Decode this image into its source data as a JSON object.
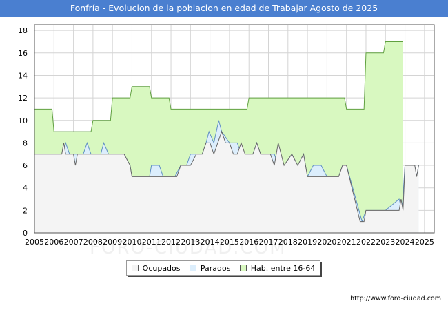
{
  "chart_data": {
    "type": "area",
    "title": "Fonfría - Evolucion de la poblacion en edad de Trabajar Agosto de 2025",
    "xlabel": "",
    "ylabel": "",
    "x_ticks": [
      "2005",
      "2006",
      "2007",
      "2008",
      "2009",
      "2010",
      "2011",
      "2012",
      "2013",
      "2014",
      "2015",
      "2016",
      "2017",
      "2018",
      "2019",
      "2020",
      "2021",
      "2022",
      "2023",
      "2024",
      "2025"
    ],
    "y_ticks": [
      "0",
      "2",
      "4",
      "6",
      "8",
      "10",
      "12",
      "14",
      "16",
      "18"
    ],
    "xlim": [
      2005,
      2025.5
    ],
    "ylim": [
      0,
      18.5
    ],
    "grid": true,
    "legend_position": "bottom-center",
    "series": [
      {
        "name": "Hab. entre 16-64",
        "color": "#d8f8c0",
        "line_color": "#60a040",
        "points": [
          [
            2005,
            11
          ],
          [
            2005.9,
            11
          ],
          [
            2006,
            9
          ],
          [
            2007.9,
            9
          ],
          [
            2008,
            10
          ],
          [
            2008.9,
            10
          ],
          [
            2009,
            12
          ],
          [
            2009.9,
            12
          ],
          [
            2010,
            13
          ],
          [
            2010.9,
            13
          ],
          [
            2011,
            12
          ],
          [
            2011.9,
            12
          ],
          [
            2012,
            11
          ],
          [
            2015.9,
            11
          ],
          [
            2016,
            12
          ],
          [
            2020.9,
            12
          ],
          [
            2021,
            11
          ],
          [
            2021.9,
            11
          ],
          [
            2022,
            16
          ],
          [
            2022.9,
            16
          ],
          [
            2023,
            17
          ],
          [
            2023.9,
            17
          ]
        ]
      },
      {
        "name": "Parados",
        "color": "#dceefc",
        "line_color": "#6090c0",
        "points": [
          [
            2005,
            7
          ],
          [
            2006,
            7
          ],
          [
            2006.4,
            7
          ],
          [
            2006.6,
            8
          ],
          [
            2006.8,
            7
          ],
          [
            2007.5,
            7
          ],
          [
            2007.7,
            8
          ],
          [
            2007.9,
            7
          ],
          [
            2008.4,
            7
          ],
          [
            2008.55,
            8
          ],
          [
            2008.8,
            7
          ],
          [
            2009.6,
            7
          ],
          [
            2009.9,
            6
          ],
          [
            2010,
            5
          ],
          [
            2010.9,
            5
          ],
          [
            2011,
            6
          ],
          [
            2011.4,
            6
          ],
          [
            2011.6,
            5
          ],
          [
            2012.2,
            5
          ],
          [
            2012.5,
            6
          ],
          [
            2012.8,
            6
          ],
          [
            2013,
            7
          ],
          [
            2013.3,
            7
          ],
          [
            2013.6,
            7
          ],
          [
            2013.8,
            8
          ],
          [
            2013.95,
            9
          ],
          [
            2014.2,
            8
          ],
          [
            2014.45,
            10
          ],
          [
            2014.6,
            9
          ],
          [
            2015.0,
            8
          ],
          [
            2015.2,
            8
          ],
          [
            2015.4,
            8
          ],
          [
            2015.6,
            7
          ],
          [
            2015.8,
            7
          ],
          [
            2016.2,
            7
          ],
          [
            2016.4,
            8
          ],
          [
            2016.6,
            7
          ],
          [
            2016.9,
            7
          ],
          [
            2017.1,
            7
          ],
          [
            2017.3,
            7
          ],
          [
            2017.5,
            6
          ],
          [
            2017.8,
            6
          ],
          [
            2018.2,
            7
          ],
          [
            2018.5,
            6
          ],
          [
            2018.8,
            7
          ],
          [
            2019.0,
            5
          ],
          [
            2019.3,
            6
          ],
          [
            2019.7,
            6
          ],
          [
            2020.0,
            5
          ],
          [
            2020.6,
            5
          ],
          [
            2020.8,
            6
          ],
          [
            2021,
            6
          ],
          [
            2021.8,
            1
          ],
          [
            2022,
            2
          ],
          [
            2023,
            2
          ],
          [
            2023.7,
            3
          ],
          [
            2023.85,
            2
          ],
          [
            2024,
            6
          ],
          [
            2024.5,
            6
          ],
          [
            2024.6,
            5
          ],
          [
            2024.7,
            6
          ]
        ]
      },
      {
        "name": "Ocupados",
        "color": "#f4f4f4",
        "line_color": "#666666",
        "points": [
          [
            2005,
            7
          ],
          [
            2006,
            7
          ],
          [
            2006.4,
            7
          ],
          [
            2006.5,
            8
          ],
          [
            2006.6,
            7
          ],
          [
            2007,
            7
          ],
          [
            2007.1,
            6
          ],
          [
            2007.2,
            7
          ],
          [
            2008,
            7
          ],
          [
            2008.5,
            7
          ],
          [
            2009,
            7
          ],
          [
            2009.6,
            7
          ],
          [
            2009.9,
            6
          ],
          [
            2010,
            5
          ],
          [
            2010.9,
            5
          ],
          [
            2011,
            5
          ],
          [
            2012,
            5
          ],
          [
            2012.3,
            5
          ],
          [
            2012.5,
            6
          ],
          [
            2013,
            6
          ],
          [
            2013.3,
            7
          ],
          [
            2013.6,
            7
          ],
          [
            2013.8,
            8
          ],
          [
            2014.0,
            8
          ],
          [
            2014.2,
            7
          ],
          [
            2014.4,
            8
          ],
          [
            2014.6,
            9
          ],
          [
            2014.8,
            8
          ],
          [
            2015.0,
            8
          ],
          [
            2015.2,
            7
          ],
          [
            2015.4,
            7
          ],
          [
            2015.6,
            8
          ],
          [
            2015.8,
            7
          ],
          [
            2016.2,
            7
          ],
          [
            2016.4,
            8
          ],
          [
            2016.6,
            7
          ],
          [
            2016.9,
            7
          ],
          [
            2017.1,
            7
          ],
          [
            2017.3,
            6
          ],
          [
            2017.5,
            8
          ],
          [
            2017.8,
            6
          ],
          [
            2018.2,
            7
          ],
          [
            2018.5,
            6
          ],
          [
            2018.8,
            7
          ],
          [
            2019.0,
            5
          ],
          [
            2019.3,
            5
          ],
          [
            2019.7,
            5
          ],
          [
            2020.0,
            5
          ],
          [
            2020.6,
            5
          ],
          [
            2020.8,
            6
          ],
          [
            2021,
            6
          ],
          [
            2021.7,
            1
          ],
          [
            2021.9,
            1
          ],
          [
            2022,
            2
          ],
          [
            2023,
            2
          ],
          [
            2023.7,
            2
          ],
          [
            2023.8,
            3
          ],
          [
            2023.9,
            2
          ],
          [
            2024,
            6
          ],
          [
            2024.5,
            6
          ],
          [
            2024.6,
            5
          ],
          [
            2024.7,
            6
          ]
        ]
      }
    ],
    "footer": "http://www.foro-ciudad.com"
  },
  "legend": {
    "ocupados_label": "Ocupados",
    "ocupados_color": "#f4f4f4",
    "parados_label": "Parados",
    "parados_color": "#dceefc",
    "hab_label": "Hab. entre 16-64",
    "hab_color": "#d8f8c0"
  },
  "watermark": "FORO-CIUDAD.COM"
}
